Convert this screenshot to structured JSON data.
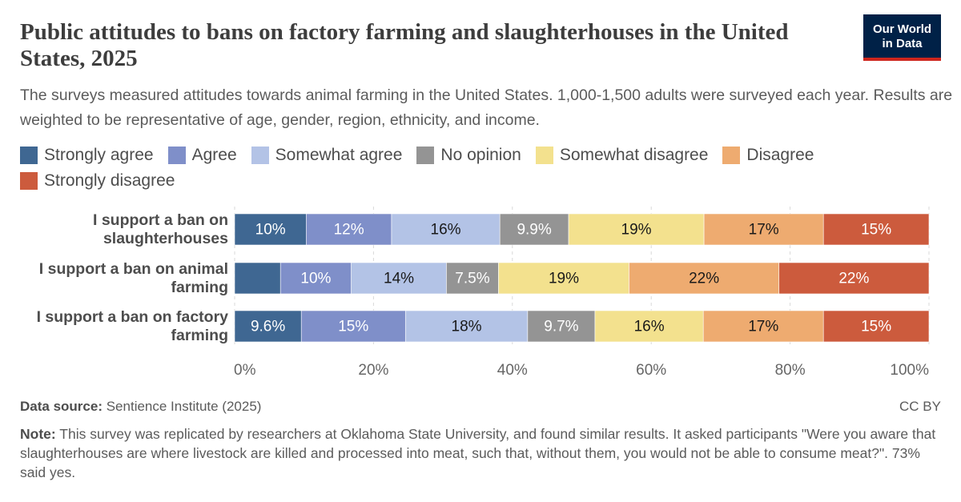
{
  "chart_data": {
    "type": "stacked-bar-horizontal",
    "title": "Public attitudes to bans on factory farming and slaughterhouses in the United States, 2025",
    "subtitle": "The surveys measured attitudes towards animal farming in the United States. 1,000-1,500 adults were surveyed each year. Results are weighted to be representative of age, gender, region, ethnicity, and income.",
    "logo": "Our World in Data",
    "categories": [
      "I support a ban on slaughterhouses",
      "I support a ban on animal farming",
      "I support a ban on factory farming"
    ],
    "series": [
      {
        "name": "Strongly agree",
        "color": "#3f6792",
        "values": [
          10.3,
          6.6,
          9.6
        ],
        "value_labels": [
          "10%",
          null,
          "9.6%"
        ]
      },
      {
        "name": "Agree",
        "color": "#7f8fc9",
        "values": [
          12.3,
          10.2,
          15.0
        ],
        "value_labels": [
          "12%",
          "10%",
          "15%"
        ]
      },
      {
        "name": "Somewhat agree",
        "color": "#b3c3e6",
        "values": [
          15.6,
          13.7,
          17.6
        ],
        "value_labels": [
          "16%",
          "14%",
          "18%"
        ]
      },
      {
        "name": "No opinion",
        "color": "#949494",
        "values": [
          9.9,
          7.5,
          9.7
        ],
        "value_labels": [
          "9.9%",
          "7.5%",
          "9.7%"
        ]
      },
      {
        "name": "Somewhat disagree",
        "color": "#f3e18e",
        "values": [
          19.5,
          18.8,
          15.6
        ],
        "value_labels": [
          "19%",
          "19%",
          "16%"
        ]
      },
      {
        "name": "Disagree",
        "color": "#eeab70",
        "values": [
          17.2,
          21.6,
          17.3
        ],
        "value_labels": [
          "17%",
          "22%",
          "17%"
        ]
      },
      {
        "name": "Strongly disagree",
        "color": "#cc5b3d",
        "values": [
          15.2,
          21.6,
          15.2
        ],
        "value_labels": [
          "15%",
          "22%",
          "15%"
        ]
      }
    ],
    "xlim": [
      0,
      100
    ],
    "xticks": [
      {
        "value": 0,
        "label": "0%"
      },
      {
        "value": 20,
        "label": "20%"
      },
      {
        "value": 40,
        "label": "40%"
      },
      {
        "value": 60,
        "label": "60%"
      },
      {
        "value": 80,
        "label": "80%"
      },
      {
        "value": 100,
        "label": "100%"
      }
    ],
    "grid": true,
    "source_label": "Data source:",
    "source": "Sentience Institute (2025)",
    "license": "CC BY",
    "note_label": "Note:",
    "note": "This survey was replicated by researchers at Oklahoma State University, and found similar results. It asked participants \"Were you aware that slaughterhouses are where livestock are killed and processed into meat, such that, without them, you would not be able to consume meat?\". 73% said yes."
  }
}
